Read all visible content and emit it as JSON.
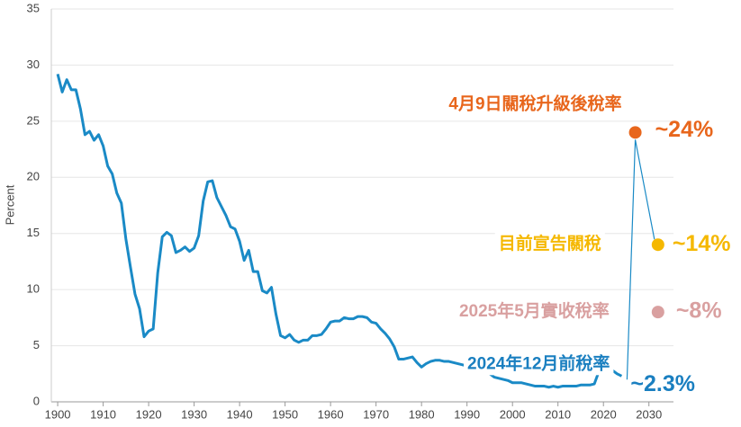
{
  "chart_data": {
    "type": "line",
    "y_label": "Percent",
    "xlim": [
      1898.6,
      2035.4
    ],
    "ylim": [
      0,
      35
    ],
    "xticks": [
      1900,
      1910,
      1920,
      1930,
      1940,
      1950,
      1960,
      1970,
      1980,
      1990,
      2000,
      2010,
      2020,
      2030
    ],
    "yticks": [
      0,
      5,
      10,
      15,
      20,
      25,
      30,
      35
    ],
    "grid": true,
    "x": [
      1900,
      1901,
      1902,
      1903,
      1904,
      1905,
      1906,
      1907,
      1908,
      1909,
      1910,
      1911,
      1912,
      1913,
      1914,
      1915,
      1916,
      1917,
      1918,
      1919,
      1920,
      1921,
      1922,
      1923,
      1924,
      1925,
      1926,
      1927,
      1928,
      1929,
      1930,
      1931,
      1932,
      1933,
      1934,
      1935,
      1936,
      1937,
      1938,
      1939,
      1940,
      1941,
      1942,
      1943,
      1944,
      1945,
      1946,
      1947,
      1948,
      1949,
      1950,
      1951,
      1952,
      1953,
      1954,
      1955,
      1956,
      1957,
      1958,
      1959,
      1960,
      1961,
      1962,
      1963,
      1964,
      1965,
      1966,
      1967,
      1968,
      1969,
      1970,
      1971,
      1972,
      1973,
      1974,
      1975,
      1976,
      1977,
      1978,
      1979,
      1980,
      1981,
      1982,
      1983,
      1984,
      1985,
      1986,
      1987,
      1988,
      1989,
      1990,
      1991,
      1992,
      1993,
      1994,
      1995,
      1996,
      1997,
      1998,
      1999,
      2000,
      2001,
      2002,
      2003,
      2004,
      2005,
      2006,
      2007,
      2008,
      2009,
      2010,
      2011,
      2012,
      2013,
      2014,
      2015,
      2016,
      2017,
      2018,
      2019,
      2020,
      2021,
      2022,
      2023,
      2024
    ],
    "series": [
      {
        "color": "#1a8ac6",
        "values": [
          29.2,
          27.6,
          28.7,
          27.8,
          27.8,
          26.1,
          23.8,
          24.1,
          23.3,
          23.8,
          22.8,
          21.0,
          20.3,
          18.6,
          17.7,
          14.5,
          12.0,
          9.6,
          8.3,
          5.8,
          6.3,
          6.5,
          11.5,
          14.7,
          15.1,
          14.8,
          13.3,
          13.5,
          13.8,
          13.4,
          13.7,
          14.8,
          17.9,
          19.6,
          19.7,
          18.2,
          17.4,
          16.6,
          15.6,
          15.4,
          14.3,
          12.6,
          13.5,
          11.6,
          11.6,
          9.9,
          9.7,
          10.2,
          7.8,
          5.9,
          5.7,
          6.0,
          5.5,
          5.3,
          5.5,
          5.5,
          5.9,
          5.9,
          6.0,
          6.5,
          7.1,
          7.2,
          7.2,
          7.5,
          7.4,
          7.4,
          7.6,
          7.6,
          7.5,
          7.1,
          7.0,
          6.5,
          6.1,
          5.6,
          4.9,
          3.8,
          3.8,
          3.9,
          4.0,
          3.5,
          3.1,
          3.4,
          3.6,
          3.7,
          3.7,
          3.6,
          3.6,
          3.5,
          3.4,
          3.3,
          3.2,
          3.3,
          3.1,
          3.1,
          2.9,
          2.5,
          2.2,
          2.1,
          2.0,
          1.9,
          1.7,
          1.7,
          1.7,
          1.6,
          1.5,
          1.4,
          1.4,
          1.4,
          1.3,
          1.4,
          1.3,
          1.4,
          1.4,
          1.4,
          1.4,
          1.5,
          1.5,
          1.5,
          1.6,
          2.7,
          2.9,
          3.0,
          2.8,
          2.5,
          2.3
        ]
      }
    ],
    "annotations": [
      {
        "label": "4月9日關稅升級後稅率",
        "x": 2027,
        "value": 24,
        "value_label": "~24%",
        "color": "#e8661c"
      },
      {
        "label": "目前宣告關稅",
        "x": 2032,
        "value": 14,
        "value_label": "~14%",
        "color": "#f5b800"
      },
      {
        "label": "2025年5月實收稅率",
        "x": 2032,
        "value": 8,
        "value_label": "~8%",
        "color": "#d9a0a0"
      },
      {
        "label": "2024年12月前稅率",
        "x": 2024,
        "value": 2.3,
        "value_label": "~2.3%",
        "color": "#1a7fc0"
      }
    ]
  }
}
